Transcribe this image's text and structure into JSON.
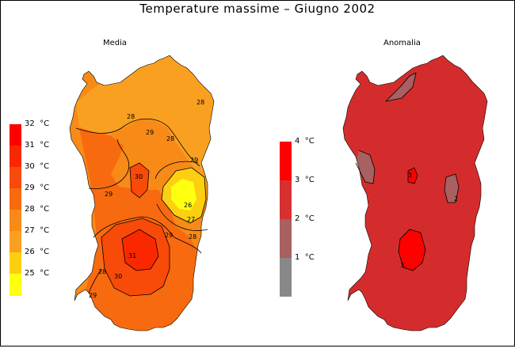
{
  "title": "Temperature massime  –  Giugno 2002",
  "maps": {
    "media": {
      "subtitle": "Media",
      "legend_unit": "°C",
      "legend": [
        {
          "value": "32",
          "color": "#ff0000"
        },
        {
          "value": "31",
          "color": "#fa2800"
        },
        {
          "value": "30",
          "color": "#f84a08"
        },
        {
          "value": "29",
          "color": "#f86a10"
        },
        {
          "value": "28",
          "color": "#f88a18"
        },
        {
          "value": "27",
          "color": "#faa020"
        },
        {
          "value": "26",
          "color": "#fcd010"
        },
        {
          "value": "25",
          "color": "#ffff10"
        }
      ],
      "contour_labels": [
        "28",
        "28",
        "29",
        "29",
        "30",
        "29",
        "26",
        "27",
        "28",
        "29",
        "31",
        "30",
        "28",
        "29",
        "28"
      ]
    },
    "anomalia": {
      "subtitle": "Anomalia",
      "legend_unit": "°C",
      "legend": [
        {
          "value": "4",
          "color": "#ff0000"
        },
        {
          "value": "3",
          "color": "#d83030"
        },
        {
          "value": "2",
          "color": "#a86060"
        },
        {
          "value": "1",
          "color": "#888888"
        }
      ],
      "contour_labels": [
        "3",
        "2",
        "3"
      ]
    }
  },
  "colors": {
    "land_media": "#f88a18",
    "land_anomalia": "#d42c2c"
  }
}
